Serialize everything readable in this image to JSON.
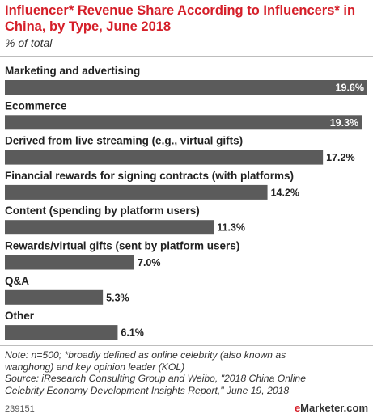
{
  "title": "Influencer* Revenue Share According to Influencers* in China, by Type, June 2018",
  "subtitle": "% of total",
  "notes": [
    "Note: n=500; *broadly defined as online celebrity (also known as",
    "wanghong) and key opinion leader (KOL)",
    "Source: iResearch Consulting Group and Weibo, \"2018 China Online",
    "Celebrity Economy Development Insights Report,\" June 19, 2018"
  ],
  "footer": {
    "id": "239151",
    "brand_prefix": "e",
    "brand_rest": "Marketer",
    "brand_suffix": ".com"
  },
  "chart_data": {
    "type": "bar",
    "orientation": "horizontal",
    "categories": [
      "Marketing and advertising",
      "Ecommerce",
      "Derived from live streaming (e.g., virtual gifts)",
      "Financial rewards for signing contracts (with platforms)",
      "Content (spending by platform users)",
      "Rewards/virtual gifts (sent by platform users)",
      "Q&A",
      "Other"
    ],
    "values": [
      19.6,
      19.3,
      17.2,
      14.2,
      11.3,
      7.0,
      5.3,
      6.1
    ],
    "value_labels": [
      "19.6%",
      "19.3%",
      "17.2%",
      "14.2%",
      "11.3%",
      "7.0%",
      "5.3%",
      "6.1%"
    ],
    "xlim": [
      0,
      19.6
    ],
    "grid": false,
    "bar_color": "#5b5b5b",
    "label_inside_color": "#ffffff",
    "label_outside_color": "#222222"
  }
}
